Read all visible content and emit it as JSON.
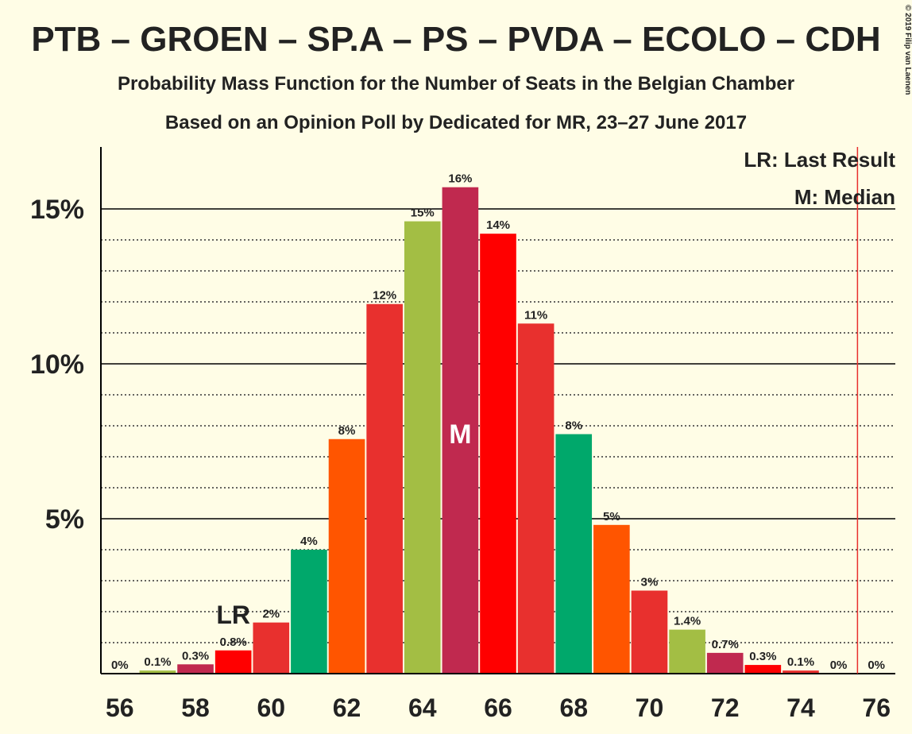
{
  "chart_data": {
    "type": "bar",
    "title": "PTB – GROEN – SP.A – PS – PVDA – ECOLO – CDH",
    "subtitle": "Probability Mass Function for the Number of Seats in the Belgian Chamber",
    "subtitle2": "Based on an Opinion Poll by Dedicated for MR, 23–27 June 2017",
    "copyright": "© 2019 Filip van Laenen",
    "legend_labels": [
      "LR: Last Result",
      "M: Median"
    ],
    "categories": [
      56,
      57,
      58,
      59,
      60,
      61,
      62,
      63,
      64,
      65,
      66,
      67,
      68,
      69,
      70,
      71,
      72,
      73,
      74,
      75,
      76
    ],
    "values": [
      0,
      0.1,
      0.3,
      0.75,
      1.65,
      4.0,
      7.57,
      11.93,
      14.6,
      15.7,
      14.2,
      11.3,
      7.73,
      4.8,
      2.68,
      1.42,
      0.67,
      0.28,
      0.1,
      0,
      0
    ],
    "value_labels": [
      "0%",
      "0.1%",
      "0.3%",
      "0.8%",
      "2%",
      "4%",
      "8%",
      "12%",
      "15%",
      "16%",
      "14%",
      "11%",
      "8%",
      "5%",
      "3%",
      "1.4%",
      "0.7%",
      "0.3%",
      "0.1%",
      "0%",
      "0%"
    ],
    "colors": [
      "#a3be44",
      "#a3be44",
      "#c0294f",
      "#ff0000",
      "#e8302e",
      "#00a86b",
      "#ff5500",
      "#e8302e",
      "#a3be44",
      "#c0294f",
      "#ff0000",
      "#e8302e",
      "#00a86b",
      "#ff5500",
      "#e8302e",
      "#a3be44",
      "#c0294f",
      "#ff0000",
      "#e8302e",
      "#00a86b",
      "#ff5500"
    ],
    "xlim": [
      55.5,
      76.5
    ],
    "xticks": [
      56,
      58,
      60,
      62,
      64,
      66,
      68,
      70,
      72,
      74,
      76
    ],
    "ylim": [
      0,
      17
    ],
    "yticks": [
      {
        "value": 5,
        "label": "5%"
      },
      {
        "value": 10,
        "label": "10%"
      },
      {
        "value": 15,
        "label": "15%"
      }
    ],
    "minor_yticks": [
      1,
      2,
      3,
      4,
      6,
      7,
      8,
      9,
      11,
      12,
      13,
      14
    ],
    "last_result": 59,
    "last_result_label": "LR",
    "median": 65,
    "median_label": "M",
    "majority_line": 75.5
  }
}
